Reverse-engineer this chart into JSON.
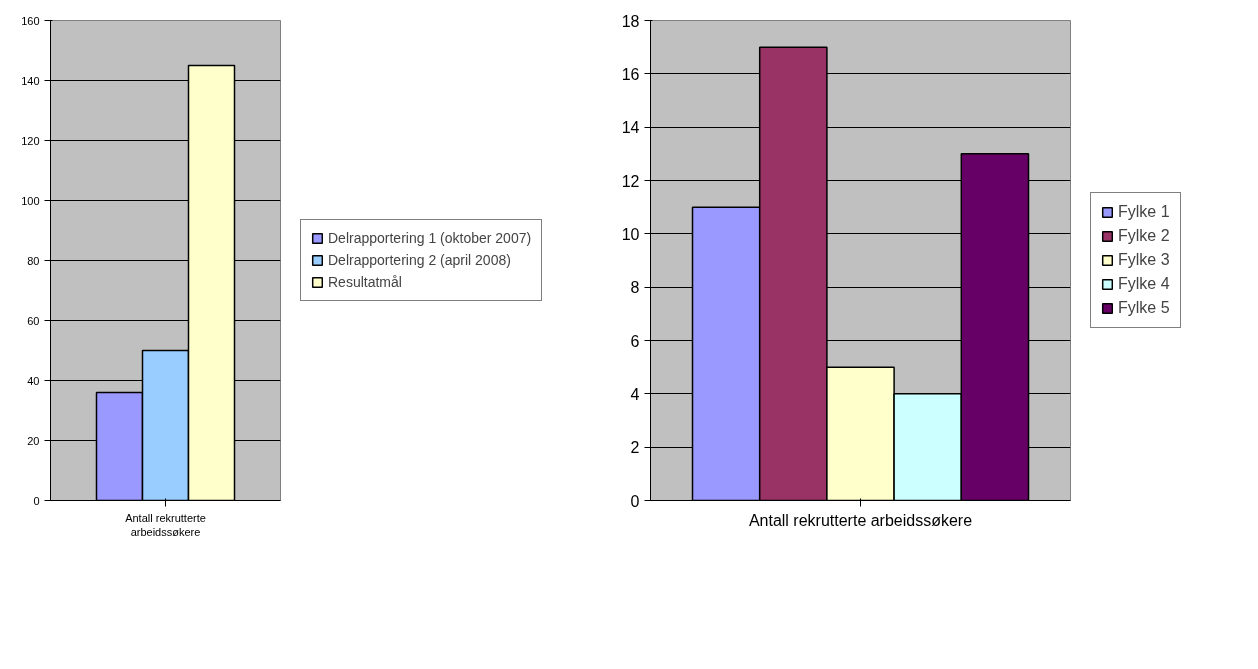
{
  "chart_data": [
    {
      "type": "bar",
      "categories": [
        "Antall rekrutterte arbeidssøkere"
      ],
      "ylim": [
        0,
        160
      ],
      "yticks": [
        0,
        20,
        40,
        60,
        80,
        100,
        120,
        140,
        160
      ],
      "grid": "y",
      "legend": "right",
      "series": [
        {
          "name": "Delrapportering 1 (oktober 2007)",
          "color": "#9999ff",
          "values": [
            36
          ]
        },
        {
          "name": "Delrapportering 2 (april 2008)",
          "color": "#99ccff",
          "values": [
            50
          ]
        },
        {
          "name": "Resultatmål",
          "color": "#ffffcc",
          "values": [
            145
          ]
        }
      ]
    },
    {
      "type": "bar",
      "categories": [
        "Antall rekrutterte arbeidssøkere"
      ],
      "ylim": [
        0,
        18
      ],
      "yticks": [
        0,
        2,
        4,
        6,
        8,
        10,
        12,
        14,
        16,
        18
      ],
      "grid": "y",
      "legend": "right",
      "series": [
        {
          "name": "Fylke 1",
          "color": "#9999ff",
          "values": [
            11
          ]
        },
        {
          "name": "Fylke 2",
          "color": "#993366",
          "values": [
            17
          ]
        },
        {
          "name": "Fylke 3",
          "color": "#ffffcc",
          "values": [
            5
          ]
        },
        {
          "name": "Fylke 4",
          "color": "#ccffff",
          "values": [
            4
          ]
        },
        {
          "name": "Fylke 5",
          "color": "#660066",
          "values": [
            13
          ]
        }
      ]
    }
  ]
}
